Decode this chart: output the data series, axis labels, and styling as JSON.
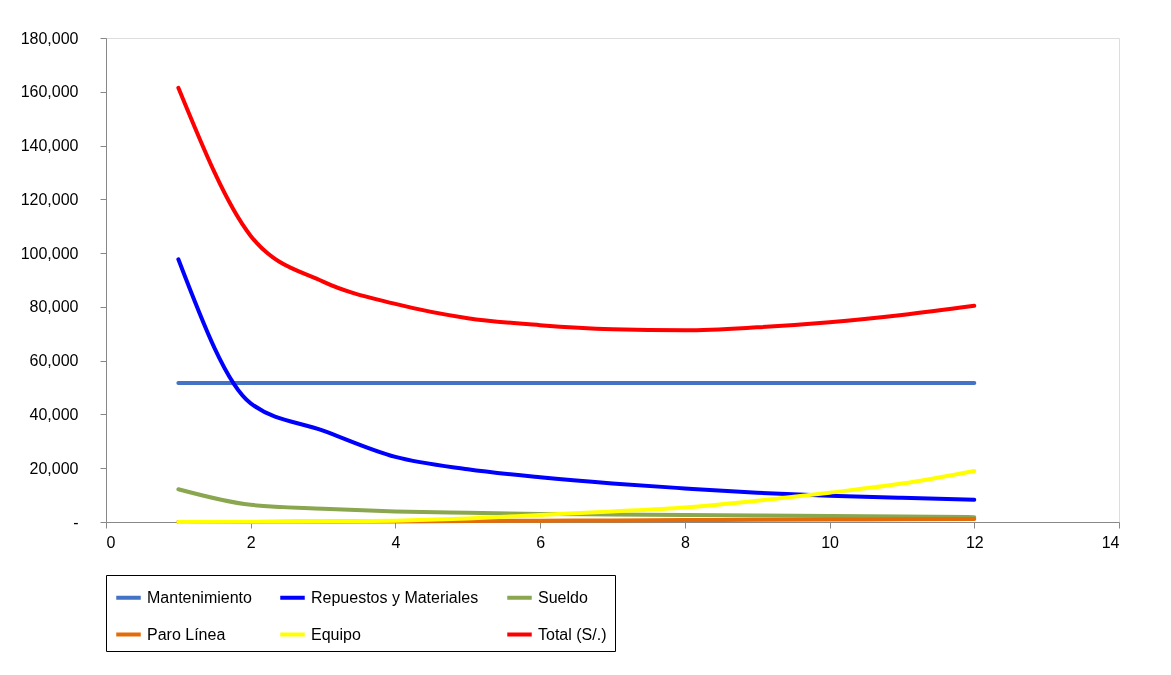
{
  "chart_data": {
    "type": "line",
    "x": [
      1,
      2,
      3,
      4,
      5,
      6,
      7,
      8,
      9,
      10,
      11,
      12
    ],
    "series": [
      {
        "name": "Mantenimiento",
        "color": "#4472c4",
        "values": [
          51700,
          51700,
          51700,
          51700,
          51700,
          51700,
          51700,
          51700,
          51700,
          51700,
          51700,
          51700
        ]
      },
      {
        "name": "Repuestos y Materiales",
        "color": "#0000ff",
        "values": [
          97700,
          44100,
          34000,
          24200,
          19600,
          16600,
          14300,
          12500,
          10900,
          9800,
          9000,
          8300
        ]
      },
      {
        "name": "Sueldo",
        "color": "#8aa64f",
        "values": [
          12200,
          6400,
          4900,
          3900,
          3400,
          3000,
          2800,
          2600,
          2400,
          2200,
          2000,
          1800
        ]
      },
      {
        "name": "Paro Línea",
        "color": "#e36c09",
        "values": [
          0,
          0,
          100,
          200,
          400,
          500,
          600,
          700,
          800,
          900,
          1000,
          1100
        ]
      },
      {
        "name": "Equipo",
        "color": "#ffff00",
        "values": [
          0,
          100,
          200,
          500,
          1300,
          2600,
          3900,
          5400,
          7900,
          10900,
          14300,
          19000
        ]
      },
      {
        "name": "Total (S/.)",
        "color": "#ff0000",
        "values": [
          161500,
          106400,
          89400,
          81100,
          75800,
          73200,
          71700,
          71300,
          72400,
          74300,
          77000,
          80400
        ]
      }
    ],
    "xlim": [
      0,
      14
    ],
    "xticks": [
      0,
      2,
      4,
      6,
      8,
      10,
      12,
      14
    ],
    "ylim": [
      0,
      180000
    ],
    "yticks": [
      {
        "value": 0,
        "label": "-"
      },
      {
        "value": 20000,
        "label": "20,000"
      },
      {
        "value": 40000,
        "label": "40,000"
      },
      {
        "value": 60000,
        "label": "60,000"
      },
      {
        "value": 80000,
        "label": "80,000"
      },
      {
        "value": 100000,
        "label": "100,000"
      },
      {
        "value": 120000,
        "label": "120,000"
      },
      {
        "value": 140000,
        "label": "140,000"
      },
      {
        "value": 160000,
        "label": "160,000"
      },
      {
        "value": 180000,
        "label": "180,000"
      }
    ],
    "grid": false,
    "legend": "bottom",
    "marker": "none",
    "line_style": "solid"
  }
}
